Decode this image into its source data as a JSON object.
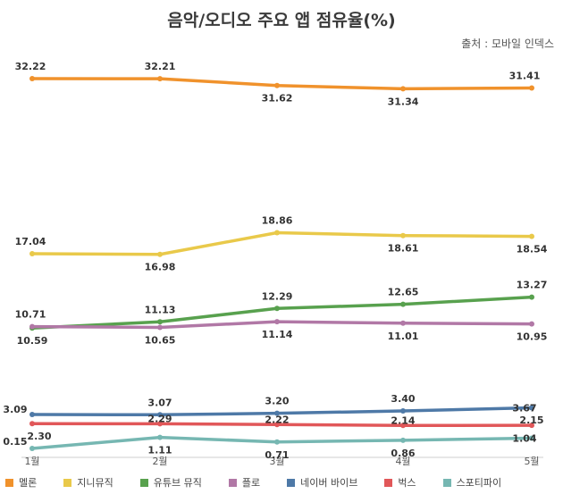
{
  "chart_data": {
    "type": "line",
    "title": "음악/오디오 주요 앱 점유율(%)",
    "source": "출처 : 모바일 인덱스",
    "x": [
      "1월",
      "2월",
      "3월",
      "4월",
      "5월"
    ],
    "ylim": [
      0,
      35
    ],
    "grid": false,
    "legend_position": "bottom",
    "series": [
      {
        "name": "멜론",
        "color": "#f0922c",
        "values": [
          32.22,
          32.21,
          31.62,
          31.34,
          31.41
        ],
        "labels": [
          "32.22",
          "32.21",
          "31.62",
          "31.34",
          "31.41"
        ]
      },
      {
        "name": "지니뮤직",
        "color": "#e9c94a",
        "values": [
          17.04,
          16.98,
          18.86,
          18.61,
          18.54
        ],
        "labels": [
          "17.04",
          "16.98",
          "18.86",
          "18.61",
          "18.54"
        ]
      },
      {
        "name": "유튜브 뮤직",
        "color": "#58a14e",
        "values": [
          10.59,
          11.13,
          12.29,
          12.65,
          13.27
        ],
        "labels": [
          "10.59",
          "11.13",
          "12.29",
          "12.65",
          "13.27"
        ]
      },
      {
        "name": "플로",
        "color": "#b178a6",
        "values": [
          10.71,
          10.65,
          11.14,
          11.01,
          10.95
        ],
        "labels": [
          "10.71",
          "10.65",
          "11.14",
          "11.01",
          "10.95"
        ]
      },
      {
        "name": "네이버 바이브",
        "color": "#4e79a7",
        "values": [
          3.09,
          3.07,
          3.2,
          3.4,
          3.67
        ],
        "labels": [
          "3.09",
          "3.07",
          "3.20",
          "3.40",
          "3.67"
        ]
      },
      {
        "name": "벅스",
        "color": "#e15759",
        "values": [
          2.3,
          2.29,
          2.22,
          2.14,
          2.15
        ],
        "labels": [
          "2.30",
          "2.29",
          "2.22",
          "2.14",
          "2.15"
        ]
      },
      {
        "name": "스포티파이",
        "color": "#76b7b2",
        "values": [
          0.15,
          1.11,
          0.71,
          0.86,
          1.04
        ],
        "labels": [
          "0.15",
          "1.11",
          "0.71",
          "0.86",
          "1.04"
        ]
      }
    ]
  }
}
